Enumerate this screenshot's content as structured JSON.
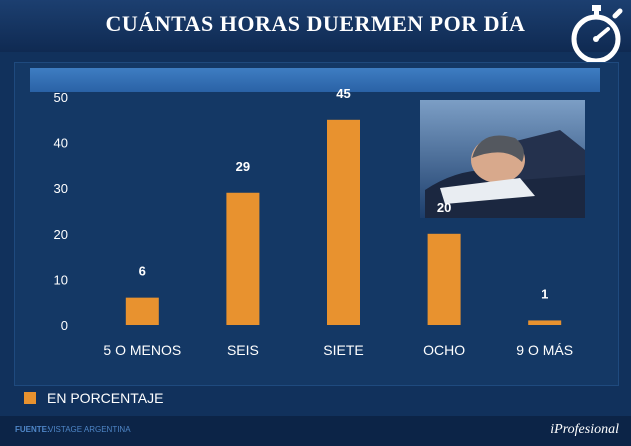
{
  "title": "CUÁNTAS HORAS DUERMEN POR DÍA",
  "icons": {
    "stopwatch": "stopwatch-icon",
    "photo": "sleeping-man-photo"
  },
  "colors": {
    "bar": "#e8922f",
    "background": "#11315c",
    "band": "#3e7dc2"
  },
  "chart_data": {
    "type": "bar",
    "title": "CUÁNTAS HORAS DUERMEN POR DÍA",
    "categories": [
      "5 O MENOS",
      "SEIS",
      "SIETE",
      "OCHO",
      "9 O MÁS"
    ],
    "values": [
      6,
      29,
      45,
      20,
      1
    ],
    "data_labels": [
      "6",
      "29",
      "45",
      "20",
      "1"
    ],
    "y_ticks": [
      "0",
      "10",
      "20",
      "30",
      "40",
      "50"
    ],
    "ylim": [
      0,
      50
    ],
    "xlabel": "",
    "ylabel": "",
    "grid": false,
    "legend": {
      "position": "bottom-left",
      "entries": [
        "EN PORCENTAJE"
      ]
    }
  },
  "legend": {
    "label": "EN PORCENTAJE"
  },
  "footer": {
    "label": "FUENTE:",
    "source": "VISTAGE ARGENTINA",
    "brand": "iProfesional"
  }
}
